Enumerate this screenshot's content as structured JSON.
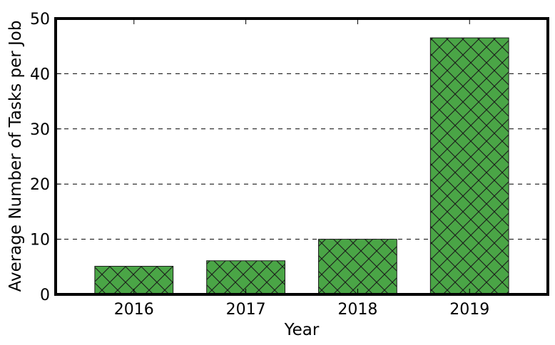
{
  "chart_data": {
    "type": "bar",
    "categories": [
      "2016",
      "2017",
      "2018",
      "2019"
    ],
    "values": [
      5.1,
      6.1,
      10.0,
      46.5
    ],
    "title": "",
    "xlabel": "Year",
    "ylabel": "Average Number of Tasks per Job",
    "ylim": [
      0,
      50
    ],
    "yticks": [
      "0",
      "10",
      "20",
      "30",
      "40",
      "50"
    ],
    "grid": "horizontal dashed",
    "legend": "none",
    "bar_color": "#4aa546",
    "hatch": "crosshatch"
  }
}
